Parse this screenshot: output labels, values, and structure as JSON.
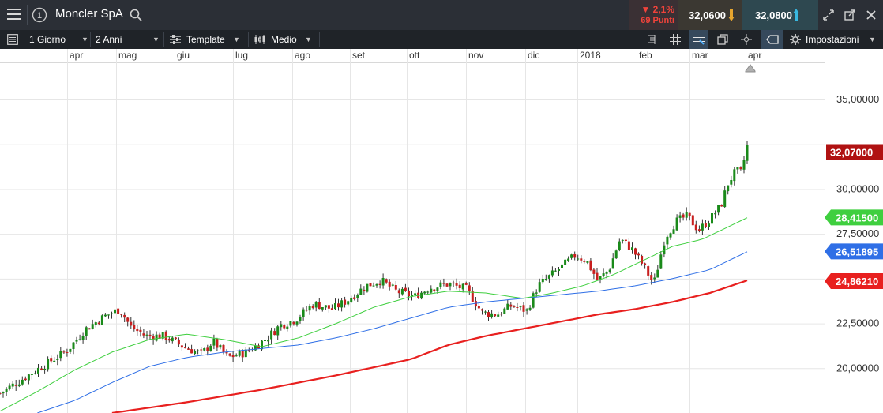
{
  "header": {
    "title": "Moncler SpA",
    "change_pct": "▼ 2,1%",
    "change_pts": "69 Punti",
    "bid": "32,0600",
    "ask": "32,0800",
    "colors": {
      "down": "#e8413c",
      "bid_arrow": "#e6a52e",
      "ask_arrow": "#39b8e0"
    }
  },
  "toolbar": {
    "interval": "1 Giorno",
    "range": "2 Anni",
    "template": "Template",
    "chart_style": "Medio",
    "settings": "Impostazioni"
  },
  "chart_data": {
    "type": "candlestick",
    "x_labels": [
      "apr",
      "mag",
      "giu",
      "lug",
      "ago",
      "set",
      "ott",
      "nov",
      "dic",
      "2018",
      "feb",
      "mar",
      "apr"
    ],
    "y_ticks": [
      "35,00000",
      "30,00000",
      "27,50000",
      "22,50000",
      "20,00000"
    ],
    "y_range": [
      17.5,
      36.5
    ],
    "last_price": "32,07000",
    "ma_labels": [
      "28,41500",
      "26,51895",
      "24,86210"
    ],
    "ma_colors": [
      "#3fcf3f",
      "#2f6fe6",
      "#e8201f"
    ],
    "price_path": [
      [
        0,
        18.6
      ],
      [
        0.03,
        19.4
      ],
      [
        0.06,
        20.2
      ],
      [
        0.09,
        21.0
      ],
      [
        0.115,
        22.2
      ],
      [
        0.14,
        22.9
      ],
      [
        0.16,
        23.3
      ],
      [
        0.175,
        22.3
      ],
      [
        0.195,
        21.8
      ],
      [
        0.22,
        21.8
      ],
      [
        0.245,
        21.2
      ],
      [
        0.27,
        20.8
      ],
      [
        0.285,
        21.5
      ],
      [
        0.305,
        20.6
      ],
      [
        0.33,
        20.9
      ],
      [
        0.355,
        21.6
      ],
      [
        0.375,
        22.4
      ],
      [
        0.395,
        22.7
      ],
      [
        0.42,
        23.6
      ],
      [
        0.445,
        23.3
      ],
      [
        0.465,
        23.8
      ],
      [
        0.49,
        24.6
      ],
      [
        0.51,
        24.9
      ],
      [
        0.53,
        24.3
      ],
      [
        0.555,
        24.0
      ],
      [
        0.575,
        24.5
      ],
      [
        0.6,
        24.7
      ],
      [
        0.625,
        24.4
      ],
      [
        0.645,
        23.1
      ],
      [
        0.665,
        23.0
      ],
      [
        0.685,
        23.5
      ],
      [
        0.705,
        23.2
      ],
      [
        0.72,
        24.6
      ],
      [
        0.735,
        25.1
      ],
      [
        0.75,
        25.6
      ],
      [
        0.77,
        26.3
      ],
      [
        0.785,
        26.0
      ],
      [
        0.8,
        24.9
      ],
      [
        0.815,
        25.5
      ],
      [
        0.83,
        27.2
      ],
      [
        0.845,
        26.7
      ],
      [
        0.86,
        25.8
      ],
      [
        0.875,
        24.7
      ],
      [
        0.89,
        27.3
      ],
      [
        0.905,
        28.2
      ],
      [
        0.92,
        28.5
      ],
      [
        0.935,
        27.7
      ],
      [
        0.95,
        28.3
      ],
      [
        0.965,
        29.1
      ],
      [
        0.975,
        30.4
      ],
      [
        0.985,
        31.0
      ],
      [
        0.992,
        30.9
      ],
      [
        1,
        32.4
      ]
    ],
    "ma_short_path": [
      [
        0,
        17.6
      ],
      [
        0.05,
        18.7
      ],
      [
        0.1,
        19.9
      ],
      [
        0.15,
        20.9
      ],
      [
        0.2,
        21.6
      ],
      [
        0.25,
        21.9
      ],
      [
        0.3,
        21.6
      ],
      [
        0.35,
        21.2
      ],
      [
        0.4,
        21.7
      ],
      [
        0.45,
        22.5
      ],
      [
        0.5,
        23.4
      ],
      [
        0.55,
        24.0
      ],
      [
        0.6,
        24.3
      ],
      [
        0.65,
        24.2
      ],
      [
        0.7,
        23.9
      ],
      [
        0.74,
        24.2
      ],
      [
        0.78,
        24.6
      ],
      [
        0.82,
        25.2
      ],
      [
        0.86,
        26.0
      ],
      [
        0.9,
        26.8
      ],
      [
        0.94,
        27.2
      ],
      [
        0.97,
        27.8
      ],
      [
        1,
        28.4
      ]
    ],
    "ma_mid_path": [
      [
        0.05,
        17.5
      ],
      [
        0.1,
        18.2
      ],
      [
        0.15,
        19.2
      ],
      [
        0.2,
        20.1
      ],
      [
        0.25,
        20.6
      ],
      [
        0.3,
        20.9
      ],
      [
        0.35,
        21.1
      ],
      [
        0.4,
        21.3
      ],
      [
        0.45,
        21.7
      ],
      [
        0.5,
        22.2
      ],
      [
        0.55,
        22.8
      ],
      [
        0.6,
        23.4
      ],
      [
        0.65,
        23.7
      ],
      [
        0.7,
        23.9
      ],
      [
        0.75,
        24.1
      ],
      [
        0.8,
        24.3
      ],
      [
        0.85,
        24.6
      ],
      [
        0.9,
        25.0
      ],
      [
        0.95,
        25.5
      ],
      [
        1,
        26.5
      ]
    ],
    "ma_long_path": [
      [
        0.15,
        17.5
      ],
      [
        0.25,
        18.1
      ],
      [
        0.35,
        18.8
      ],
      [
        0.45,
        19.6
      ],
      [
        0.55,
        20.5
      ],
      [
        0.6,
        21.3
      ],
      [
        0.65,
        21.8
      ],
      [
        0.7,
        22.2
      ],
      [
        0.75,
        22.6
      ],
      [
        0.8,
        23.0
      ],
      [
        0.85,
        23.3
      ],
      [
        0.9,
        23.7
      ],
      [
        0.95,
        24.2
      ],
      [
        1,
        24.9
      ]
    ]
  }
}
